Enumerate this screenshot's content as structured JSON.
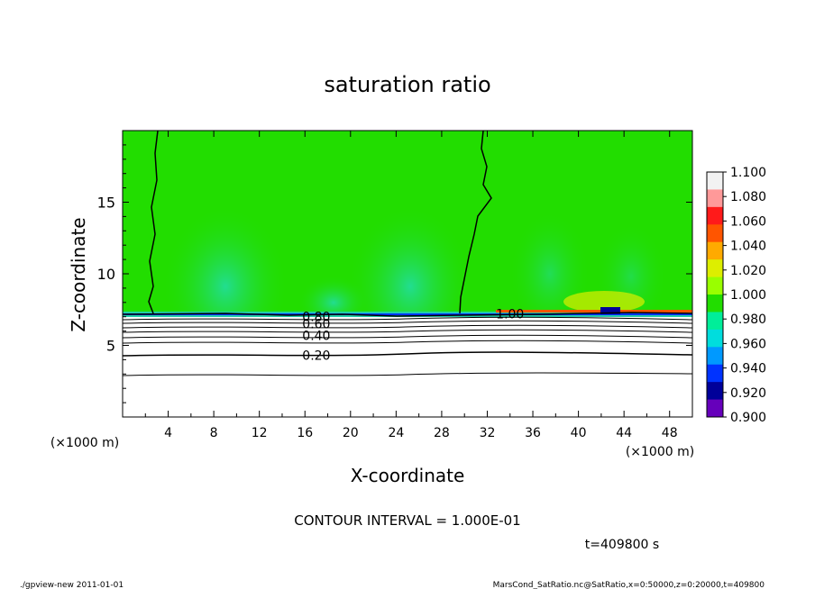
{
  "chart_data": {
    "type": "heatmap",
    "title": "saturation ratio",
    "xlabel": "X-coordinate",
    "ylabel": "Z-coordinate",
    "x_unit": "(×1000 m)",
    "z_unit": "(×1000 m)",
    "xlim": [
      0,
      50
    ],
    "ylim": [
      0,
      20
    ],
    "x_ticks": [
      "4",
      "8",
      "12",
      "16",
      "20",
      "24",
      "28",
      "32",
      "36",
      "40",
      "44",
      "48"
    ],
    "y_ticks": [
      "5",
      "10",
      "15"
    ],
    "colorbar": {
      "levels": [
        "1.100",
        "1.080",
        "1.060",
        "1.040",
        "1.020",
        "1.000",
        "0.980",
        "0.960",
        "0.940",
        "0.920",
        "0.900"
      ],
      "colors": [
        "#f2f2f2",
        "#ff9999",
        "#ff1a1a",
        "#ff5500",
        "#ffaa00",
        "#ddee00",
        "#99ff00",
        "#22dd00",
        "#00ee99",
        "#00dddd",
        "#0099ff",
        "#0033ff",
        "#000099",
        "#6600bb"
      ]
    },
    "contour_labels": [
      {
        "text": "0.20",
        "x": 17,
        "z": 4.3
      },
      {
        "text": "0.40",
        "x": 17,
        "z": 5.7
      },
      {
        "text": "0.60",
        "x": 17,
        "z": 6.5
      },
      {
        "text": "0.80",
        "x": 17,
        "z": 7.0
      },
      {
        "text": "1.00",
        "x": 34,
        "z": 7.2
      }
    ],
    "contour_interval_text": "CONTOUR INTERVAL = 1.000E-01",
    "time_text": "t=409800 s"
  },
  "footer": {
    "left": "./gpview-new  2011-01-01",
    "right": "MarsCond_SatRatio.nc@SatRatio,x=0:50000,z=0:20000,t=409800"
  }
}
